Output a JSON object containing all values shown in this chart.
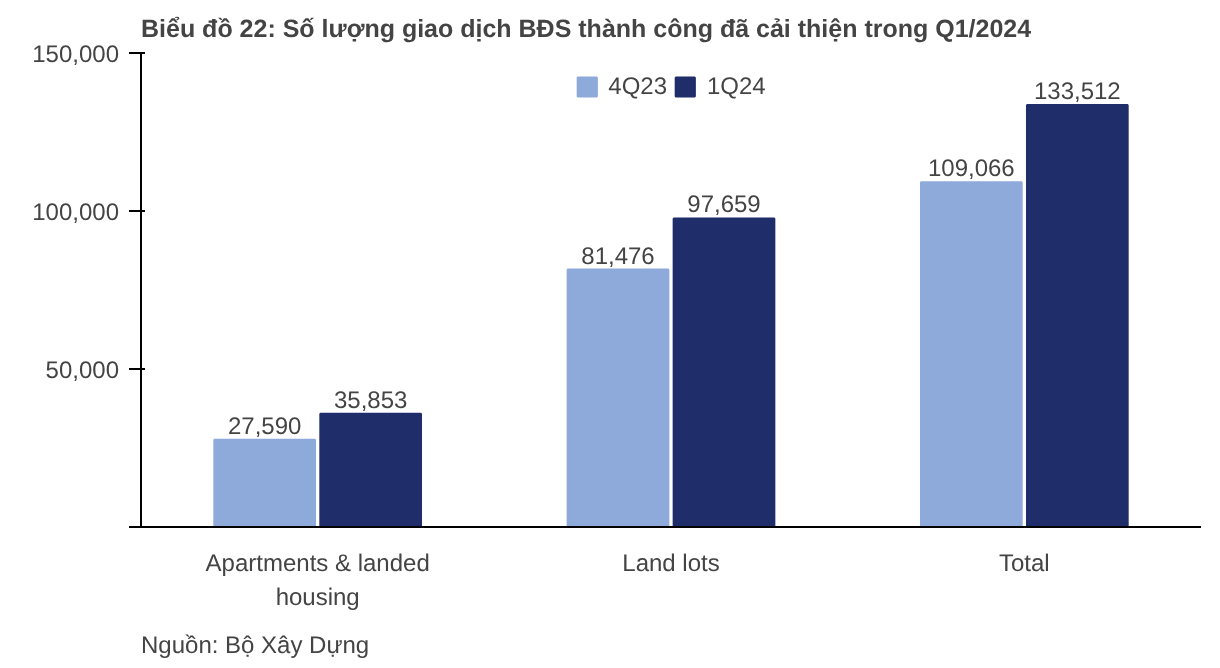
{
  "chart_data": {
    "type": "bar",
    "title": "Biểu đồ 22:  Số lượng giao dịch BĐS thành công đã cải thiện trong Q1/2024",
    "categories": [
      "Apartments & landed housing",
      "Land lots",
      "Total"
    ],
    "series": [
      {
        "name": "4Q23",
        "color": "#8eaadb",
        "values": [
          27590,
          81476,
          109066
        ],
        "value_labels": [
          "27,590",
          "81,476",
          "109,066"
        ]
      },
      {
        "name": "1Q24",
        "color": "#1f2d6b",
        "values": [
          35853,
          97659,
          133512
        ],
        "value_labels": [
          "35,853",
          "97,659",
          "133,512"
        ]
      }
    ],
    "ylim": [
      0,
      150000
    ],
    "yticks": [
      {
        "value": 0,
        "label": null
      },
      {
        "value": 50000,
        "label": "50,000"
      },
      {
        "value": 100000,
        "label": "100,000"
      },
      {
        "value": 150000,
        "label": "150,000"
      }
    ],
    "grid": false,
    "legend": "top",
    "annotations": [
      "Nguồn: Bộ Xây Dựng"
    ]
  }
}
